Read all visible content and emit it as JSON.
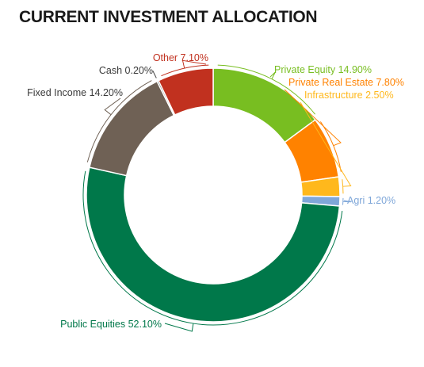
{
  "chart_data": {
    "type": "pie",
    "title": "CURRENT INVESTMENT ALLOCATION",
    "unit": "%",
    "slices": [
      {
        "label": "Private Equity",
        "value_text": "14.90%",
        "value": 14.9,
        "color": "#78be21"
      },
      {
        "label": "Private Real Estate",
        "value_text": "7.80%",
        "value": 7.8,
        "color": "#ff8200"
      },
      {
        "label": "Infrastructure",
        "value_text": "2.50%",
        "value": 2.5,
        "color": "#ffb81c"
      },
      {
        "label": "Agri",
        "value_text": "1.20%",
        "value": 1.2,
        "color": "#7fa7d9"
      },
      {
        "label": "Public Equities",
        "value_text": "52.10%",
        "value": 52.1,
        "color": "#00784a"
      },
      {
        "label": "Fixed Income",
        "value_text": "14.20%",
        "value": 14.2,
        "color": "#6f6155"
      },
      {
        "label": "Cash",
        "value_text": "0.20%",
        "value": 0.2,
        "color": "#4d4d4d"
      },
      {
        "label": "Other",
        "value_text": "7.10%",
        "value": 7.1,
        "color": "#c1311f"
      }
    ]
  }
}
